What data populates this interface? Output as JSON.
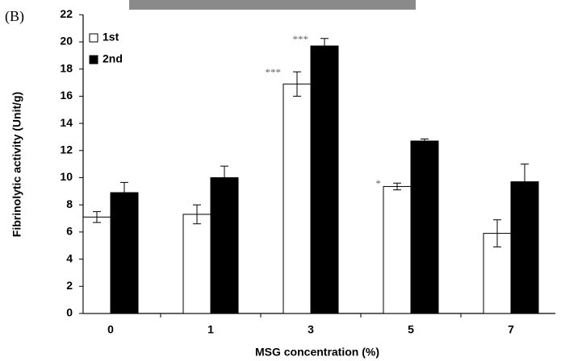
{
  "chart_data": {
    "type": "bar",
    "panel_label": "(B)",
    "xlabel": "MSG concentration (%)",
    "ylabel": "Fibrinolytic activity (Unit/g)",
    "categories": [
      "0",
      "1",
      "3",
      "5",
      "7"
    ],
    "series": [
      {
        "name": "1st",
        "color": "#ffffff",
        "values": [
          7.1,
          7.3,
          16.9,
          9.35,
          5.9
        ],
        "errors": [
          0.4,
          0.7,
          0.9,
          0.25,
          1.0
        ],
        "annotations": [
          null,
          null,
          "***",
          "*",
          null
        ]
      },
      {
        "name": "2nd",
        "color": "#000000",
        "values": [
          8.9,
          10.0,
          19.7,
          12.7,
          9.7
        ],
        "errors": [
          0.75,
          0.85,
          0.55,
          0.15,
          1.3
        ],
        "annotations": [
          null,
          null,
          "***",
          null,
          null
        ]
      }
    ],
    "ylim": [
      0,
      22
    ],
    "yticks": [
      0,
      2,
      4,
      6,
      8,
      10,
      12,
      14,
      16,
      18,
      20,
      22
    ],
    "legend": "upper-left"
  }
}
